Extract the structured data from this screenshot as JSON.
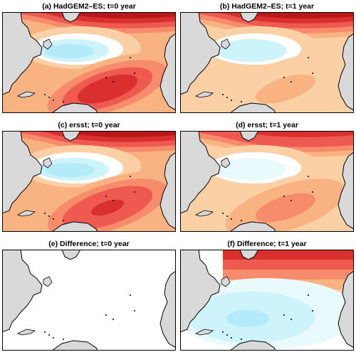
{
  "panels": [
    {
      "id": "a",
      "title": "(a) HadGEM2–ES; t=0 year"
    },
    {
      "id": "b",
      "title": "(b) HadGEM2–ES; t=1 year"
    },
    {
      "id": "c",
      "title": "(c) ersst; t=0 year"
    },
    {
      "id": "d",
      "title": "(d) ersst; t=1 year"
    },
    {
      "id": "e",
      "title": "(e) Difference; t=0 year"
    },
    {
      "id": "f",
      "title": "(f) Difference; t=1 year"
    }
  ],
  "colors": {
    "land": "#d9d9d9",
    "coast": "#000000",
    "ocean": "#ffffff",
    "warm": [
      "#fde8cf",
      "#fbd0a5",
      "#f9b383",
      "#f68c6c",
      "#ee5a50",
      "#d92f2f",
      "#b81818"
    ],
    "cool": [
      "#e9fafd",
      "#cdf3fb",
      "#b3ebf8"
    ]
  },
  "pattern_levels": {
    "a": {
      "north": 0.95,
      "cool": 0.8,
      "south": 0.9,
      "edge": 0.5
    },
    "b": {
      "north": 0.95,
      "cool": 0.6,
      "south": 0.35,
      "edge": 0.45
    },
    "c": {
      "north": 0.95,
      "cool": 0.8,
      "south": 0.85,
      "edge": 0.5
    },
    "d": {
      "north": 0.85,
      "cool": 0.4,
      "south": 0.55,
      "edge": 0.35
    },
    "e": {
      "north": 0.0,
      "cool": 0.0,
      "south": 0.0,
      "edge": 0.0
    },
    "f": {
      "north": 0.9,
      "cool": 0.7,
      "south": 0.0,
      "edge": 0.4
    }
  }
}
